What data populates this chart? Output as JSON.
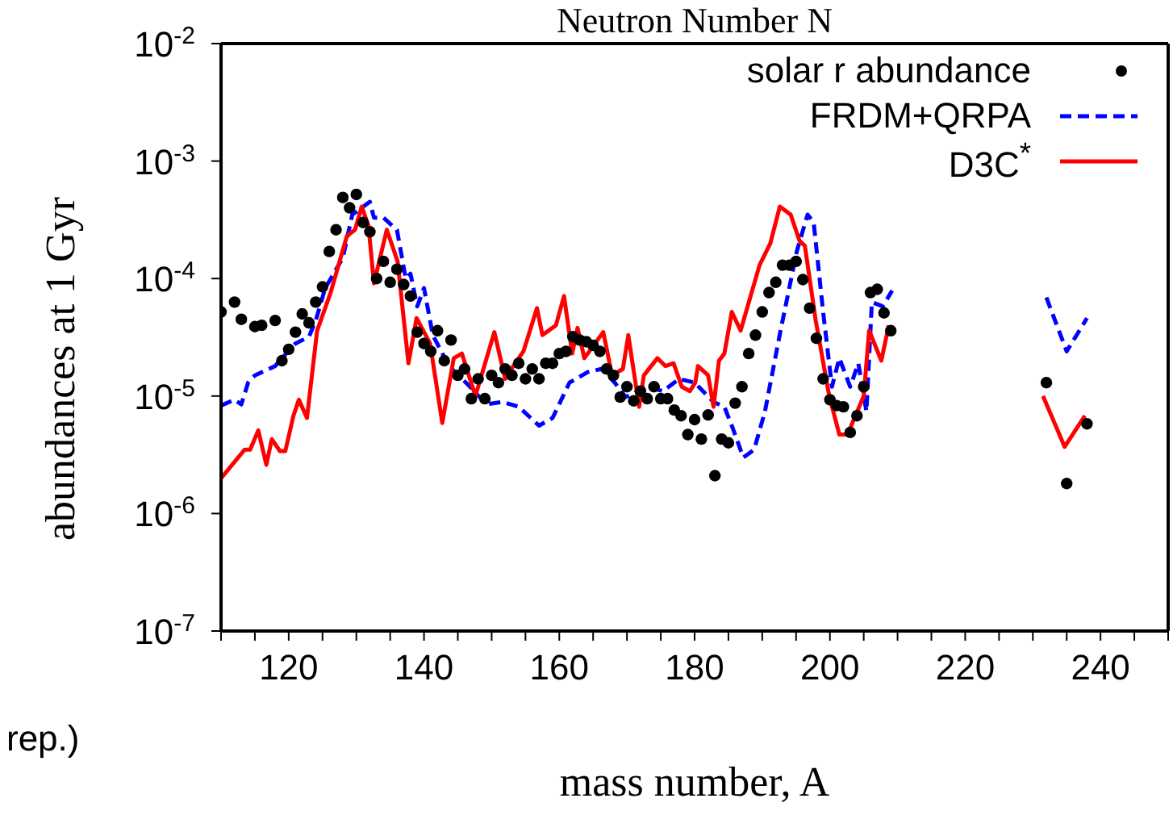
{
  "chart_data": {
    "type": "line",
    "title": "Neutron Number N",
    "xlabel": "mass number, A",
    "ylabel": "abundances at 1 Gyr",
    "annotations": [
      "rep.)"
    ],
    "log": "y",
    "legend": "top right",
    "xlim": [
      110,
      250
    ],
    "ylim": [
      1e-07,
      0.01
    ],
    "xticks": [
      {
        "value": 110,
        "label": null
      },
      {
        "value": 115,
        "label": null
      },
      120,
      {
        "value": 125,
        "label": null
      },
      {
        "value": 130,
        "label": null
      },
      {
        "value": 135,
        "label": null
      },
      140,
      {
        "value": 145,
        "label": null
      },
      {
        "value": 150,
        "label": null
      },
      {
        "value": 155,
        "label": null
      },
      160,
      {
        "value": 165,
        "label": null
      },
      {
        "value": 170,
        "label": null
      },
      {
        "value": 175,
        "label": null
      },
      180,
      {
        "value": 185,
        "label": null
      },
      {
        "value": 190,
        "label": null
      },
      {
        "value": 195,
        "label": null
      },
      200,
      {
        "value": 205,
        "label": null
      },
      {
        "value": 210,
        "label": null
      },
      {
        "value": 215,
        "label": null
      },
      220,
      {
        "value": 225,
        "label": null
      },
      {
        "value": 230,
        "label": null
      },
      {
        "value": 235,
        "label": null
      },
      240,
      {
        "value": 245,
        "label": null
      },
      {
        "value": 250,
        "label": null
      }
    ],
    "yticks": [
      {
        "value": 1e-07,
        "label": "10$^{-7}$"
      },
      {
        "value": 1e-06,
        "label": "10$^{-6}$"
      },
      {
        "value": 1e-05,
        "label": "10$^{-5}$"
      },
      {
        "value": 0.0001,
        "label": "10$^{-4}$"
      },
      {
        "value": 0.001,
        "label": "10$^{-3}$"
      },
      {
        "value": 0.01,
        "label": "10$^{-2}$"
      }
    ],
    "series": [
      {
        "name": "solar r abundance",
        "type": "scatter",
        "marker": "circle",
        "color": "#000000",
        "x": [
          110,
          112,
          113,
          115,
          116,
          118,
          119,
          120,
          121,
          122,
          123,
          124,
          125,
          126,
          127,
          128,
          129,
          130,
          131,
          132,
          133,
          134,
          135,
          136,
          137,
          138,
          139,
          140,
          141,
          142,
          143,
          144,
          145,
          146,
          147,
          148,
          149,
          150,
          151,
          152,
          153,
          154,
          155,
          156,
          157,
          158,
          159,
          160,
          161,
          162,
          163,
          164,
          165,
          166,
          167,
          168,
          169,
          170,
          171,
          172,
          173,
          174,
          175,
          176,
          177,
          178,
          179,
          180,
          181,
          182,
          183,
          184,
          185,
          186,
          187,
          188,
          189,
          190,
          191,
          192,
          193,
          194,
          195,
          196,
          197,
          198,
          199,
          200,
          201,
          202,
          203,
          204,
          205,
          206,
          207,
          208,
          209,
          232,
          235,
          238
        ],
        "values": [
          5.2e-05,
          6.3e-05,
          4.5e-05,
          3.9e-05,
          4e-05,
          4.4e-05,
          2e-05,
          2.5e-05,
          3.5e-05,
          5e-05,
          4.2e-05,
          6.3e-05,
          8.5e-05,
          0.00017,
          0.00026,
          0.00049,
          0.0004,
          0.00052,
          0.0003,
          0.00025,
          0.0001,
          0.00014,
          9.3e-05,
          0.00012,
          8.9e-05,
          7.1e-05,
          3.5e-05,
          2.8e-05,
          2.4e-05,
          3.6e-05,
          2e-05,
          3e-05,
          1.5e-05,
          1.7e-05,
          9.5e-06,
          1.4e-05,
          9.5e-06,
          1.5e-05,
          1.3e-05,
          1.7e-05,
          1.5e-05,
          1.9e-05,
          1.4e-05,
          1.7e-05,
          1.4e-05,
          1.9e-05,
          1.9e-05,
          2.3e-05,
          2.4e-05,
          3.2e-05,
          3e-05,
          2.9e-05,
          2.7e-05,
          2.4e-05,
          1.7e-05,
          1.5e-05,
          9.8e-06,
          1.2e-05,
          9.1e-06,
          1.1e-05,
          9.5e-06,
          1.2e-05,
          9.5e-06,
          9.5e-06,
          7.6e-06,
          6.8e-06,
          4.7e-06,
          6.3e-06,
          4.3e-06,
          6.9e-06,
          2.1e-06,
          4.3e-06,
          4e-06,
          8.7e-06,
          1.2e-05,
          2.3e-05,
          3.3e-05,
          5.2e-05,
          7.6e-05,
          9.3e-05,
          0.00013,
          0.00013,
          0.00014,
          9.8e-05,
          5.6e-05,
          3.1e-05,
          1.4e-05,
          9.3e-06,
          8.3e-06,
          8.1e-06,
          4.9e-06,
          6.8e-06,
          1.2e-05,
          7.6e-05,
          8.1e-05,
          5.1e-05,
          3.6e-05,
          1.3e-05,
          1.8e-06,
          5.8e-06
        ]
      },
      {
        "name": "FRDM+QRPA",
        "line_style": "dashed",
        "color": "#0000ff",
        "x": [
          110,
          112,
          113,
          114,
          115,
          118,
          119,
          121,
          123,
          124,
          125.4,
          128,
          129.4,
          132,
          132.6,
          134,
          136,
          137.3,
          138,
          139,
          140,
          141.3,
          143.7,
          146.8,
          149.2,
          151.6,
          154,
          157,
          159,
          161.5,
          164.2,
          166.2,
          168.2,
          169.8,
          173,
          175.3,
          177.7,
          180,
          182.8,
          184.4,
          185.6,
          187.2,
          188.8,
          190.4,
          192.7,
          195.1,
          196.7,
          197.6,
          199,
          200.3,
          201.4,
          203,
          204.2,
          205.4,
          206.2,
          207.8,
          209.2,
          220,
          232,
          235,
          238
        ],
        "values": [
          8.3e-06,
          9.3e-06,
          8.5e-06,
          1.3e-05,
          1.5e-05,
          1.8e-05,
          2.1e-05,
          2.8e-05,
          3.2e-05,
          4.4e-05,
          8.3e-05,
          0.00015,
          0.00035,
          0.00045,
          0.00033,
          0.00033,
          0.00026,
          0.0001,
          0.00011,
          5.8e-05,
          8.3e-05,
          3.3e-05,
          1.8e-05,
          1.2e-05,
          8.5e-06,
          8.9e-06,
          8.1e-06,
          5.6e-06,
          6.5e-06,
          1.3e-05,
          1.6e-05,
          1.7e-05,
          1.3e-05,
          9.8e-06,
          1.2e-05,
          1.1e-05,
          1.4e-05,
          1.3e-05,
          8.9e-06,
          8.1e-06,
          5.4e-06,
          3e-06,
          3.5e-06,
          7.4e-06,
          3.6e-05,
          0.00017,
          0.00035,
          0.0003,
          5.2e-05,
          1.2e-05,
          2.1e-05,
          1.2e-05,
          1.9e-05,
          7.4e-06,
          6.3e-05,
          5.8e-05,
          7.9e-05,
          null,
          6.9e-05,
          2.4e-05,
          4.6e-05
        ]
      },
      {
        "name": "D3C$^{*}$",
        "line_style": "solid",
        "color": "#ff0000",
        "x": [
          110,
          113.5,
          114.3,
          115.5,
          116.7,
          117.5,
          118.7,
          119.5,
          120.7,
          121.5,
          122.7,
          124.2,
          126.2,
          128.6,
          129.8,
          130.8,
          131.8,
          132.6,
          134.5,
          136.1,
          137.7,
          138.9,
          140.9,
          142.7,
          144.4,
          145.6,
          147.6,
          150.4,
          152,
          153.2,
          154.7,
          156.7,
          157.5,
          159.5,
          160.7,
          161.9,
          162.7,
          163.7,
          166.5,
          167.8,
          169.4,
          170.2,
          171.8,
          172.5,
          174.5,
          175.7,
          176.9,
          178.1,
          179.3,
          180.1,
          180.5,
          182,
          182.8,
          183.6,
          184.4,
          185.5,
          186.8,
          189.6,
          191.2,
          192.6,
          194.2,
          195.5,
          196.3,
          197.9,
          199.9,
          201.4,
          202.6,
          205,
          205.8,
          207.6,
          208.7,
          220,
          231.5,
          234.7,
          237.7
        ],
        "values": [
          2e-06,
          3.5e-06,
          3.5e-06,
          5.1e-06,
          2.6e-06,
          4.3e-06,
          3.4e-06,
          3.4e-06,
          6.8e-06,
          9.3e-06,
          6.5e-06,
          3.6e-05,
          7.6e-05,
          0.00023,
          0.00026,
          0.00041,
          0.00028,
          9.1e-05,
          0.00026,
          0.00014,
          1.9e-05,
          4.6e-05,
          2.8e-05,
          5.9e-06,
          2.1e-05,
          2.3e-05,
          1e-05,
          3.5e-05,
          1.4e-05,
          1.8e-05,
          2.4e-05,
          5.6e-05,
          3.3e-05,
          4e-05,
          7.1e-05,
          2.3e-05,
          3.8e-05,
          2.1e-05,
          3.5e-05,
          1.5e-05,
          1.7e-05,
          3.3e-05,
          8.1e-06,
          1.5e-05,
          2.1e-05,
          1.8e-05,
          1.9e-05,
          1.2e-05,
          1.1e-05,
          1.3e-05,
          1.8e-05,
          1.5e-05,
          8.1e-06,
          2e-05,
          2.3e-05,
          5.2e-05,
          3.6e-05,
          0.00013,
          0.0002,
          0.00041,
          0.00035,
          0.00021,
          0.00019,
          4.4e-05,
          1e-05,
          4.7e-06,
          4.7e-06,
          1e-05,
          3.6e-05,
          2e-05,
          4e-05,
          null,
          1e-05,
          3.7e-06,
          6.8e-06
        ]
      }
    ]
  }
}
